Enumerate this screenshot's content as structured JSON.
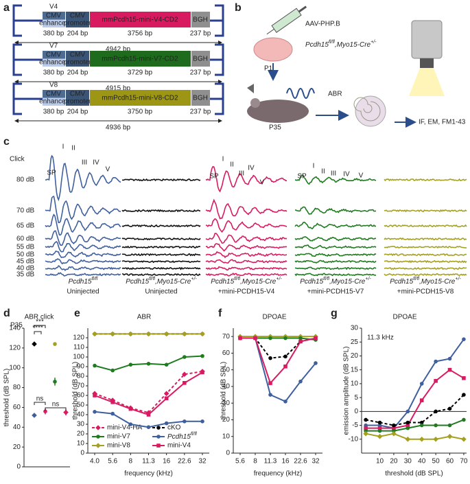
{
  "panel_labels": [
    "a",
    "b",
    "c",
    "d",
    "e",
    "f",
    "g"
  ],
  "constructs": [
    {
      "name": "V4",
      "enhancer": [
        "CMV",
        "enhancer"
      ],
      "promoter": [
        "CMV",
        "promoter"
      ],
      "gene": "mmPcdh15-mini-V4-CD2",
      "polyA": "BGH",
      "sizes": [
        "380 bp",
        "204 bp",
        "3756 bp",
        "237 bp"
      ],
      "total": "4942 bp",
      "color": "#d81b60"
    },
    {
      "name": "V7",
      "enhancer": [
        "CMV",
        "enhancer"
      ],
      "promoter": [
        "CMV",
        "promoter"
      ],
      "gene": "mmPcdh15-mini-V7-CD2",
      "polyA": "BGH",
      "sizes": [
        "380 bp",
        "204 bp",
        "3729 bp",
        "237 bp"
      ],
      "total": "4915 bp",
      "color": "#1e6b1e"
    },
    {
      "name": "V8",
      "enhancer": [
        "CMV",
        "enhancer"
      ],
      "promoter": [
        "CMV",
        "promoter"
      ],
      "gene": "mmPcdh15-mini-V8-CD2",
      "polyA": "BGH",
      "sizes": [
        "380 bp",
        "204 bp",
        "3750 bp",
        "237 bp"
      ],
      "total": "4936 bp",
      "color": "#9c9614"
    }
  ],
  "workflow": {
    "vector": "AAV-PHP.B",
    "genotype": [
      "Pcdh15",
      "fl/fl",
      ",Myo15-Cre",
      "+/-"
    ],
    "injection_age": "P1",
    "test": "ABR",
    "test_age": "P35",
    "analysis": "IF, EM, FM1-43"
  },
  "abr_traces": {
    "stimulus": "Click",
    "levels": [
      "80 dB",
      "70 dB",
      "65 dB",
      "60 dB",
      "55 dB",
      "50 dB",
      "45 dB",
      "40 dB",
      "35 dB"
    ],
    "peaks": [
      [
        "SP",
        "I",
        "II",
        "III",
        "IV",
        "V"
      ],
      [
        "SP",
        "I",
        "II",
        "III",
        "IV",
        "V"
      ],
      [
        "SP",
        "I",
        "II",
        "III",
        "IV",
        "V"
      ]
    ],
    "columns": [
      {
        "genotype": [
          "Pcdh15",
          "fl/fl"
        ],
        "treatment": "Uninjected",
        "color": "#3f5f9e"
      },
      {
        "genotype": [
          "Pcdh15",
          "fl/fl",
          ",Myo15-Cre",
          "+/-"
        ],
        "treatment": "Uninjected",
        "color": "#111111"
      },
      {
        "genotype": [
          "Pcdh15",
          "fl/fl",
          ",Myo15-Cre",
          "+/-"
        ],
        "treatment": "+mini-PCDH15-V4",
        "color": "#d81b60"
      },
      {
        "genotype": [
          "Pcdh15",
          "fl/fl",
          ",Myo15-Cre",
          "+/-"
        ],
        "treatment": "+mini-PCDH15-V7",
        "color": "#1e7b1e"
      },
      {
        "genotype": [
          "Pcdh15",
          "fl/fl",
          ",Myo15-Cre",
          "+/-"
        ],
        "treatment": "+mini-PCDH15-V8",
        "color": "#a5a01e"
      }
    ]
  },
  "chart_data": [
    {
      "type": "scatter",
      "title": "ABR click",
      "subtitle": "P35",
      "y_label": "threshold (dB SPL)",
      "ylim": [
        0,
        140
      ],
      "yticks": [
        0,
        20,
        40,
        60,
        80,
        100,
        120,
        140
      ],
      "series": [
        {
          "color": "#000000",
          "marker": "diamond",
          "values": [
            124
          ],
          "errors": [
            0
          ]
        },
        {
          "color": "#3f5f9e",
          "marker": "diamond",
          "values": [
            52
          ],
          "errors": [
            0
          ]
        },
        {
          "color": "#d81b60",
          "marker": "circle",
          "values": [
            56
          ],
          "errors": [
            3
          ]
        },
        {
          "color": "#1e7b1e",
          "marker": "circle",
          "values": [
            86
          ],
          "errors": [
            4
          ]
        },
        {
          "color": "#a5a01e",
          "marker": "circle",
          "values": [
            124
          ],
          "errors": [
            0
          ]
        },
        {
          "color": "#d81b60",
          "marker": "diamond",
          "values": [
            55
          ],
          "errors": [
            3
          ]
        }
      ],
      "annotations": [
        "***",
        "****",
        "ns",
        "ns"
      ]
    },
    {
      "type": "line",
      "title": "ABR",
      "x_label": "frequency (kHz)",
      "y_label": "threshold (dB SPL)",
      "categories": [
        "4.0",
        "5.6",
        "8",
        "11.3",
        "16",
        "22.6",
        "32"
      ],
      "ylim": [
        0,
        130
      ],
      "yticks": [
        0,
        10,
        20,
        30,
        40,
        50,
        60,
        70,
        80,
        90,
        100,
        110,
        120
      ],
      "series": [
        {
          "name": "mini-V4-HA",
          "color": "#d81b60",
          "dash": true,
          "marker": "diamond",
          "values": [
            62,
            55,
            47,
            42,
            62,
            82,
            85
          ]
        },
        {
          "name": "cKO",
          "color": "#000000",
          "dash": true,
          "marker": "circle",
          "values": [
            124,
            124,
            124,
            124,
            124,
            124,
            124
          ]
        },
        {
          "name": "mini-V7",
          "color": "#1e7b1e",
          "dash": false,
          "marker": "circle",
          "values": [
            91,
            86,
            92,
            93,
            92,
            100,
            101
          ]
        },
        {
          "name": [
            "Pcdh15",
            "fl/fl"
          ],
          "color": "#3f5f9e",
          "dash": false,
          "marker": "circle",
          "values": [
            43,
            41,
            30,
            27,
            31,
            33,
            33
          ]
        },
        {
          "name": "mini-V8",
          "color": "#a5a01e",
          "dash": false,
          "marker": "diamond",
          "values": [
            124,
            124,
            124,
            124,
            124,
            124,
            124
          ]
        },
        {
          "name": "mini-V4",
          "color": "#d81b60",
          "dash": false,
          "marker": "square",
          "values": [
            60,
            53,
            46,
            40,
            57,
            73,
            84
          ]
        }
      ]
    },
    {
      "type": "line",
      "title": "DPOAE",
      "x_label": "frequency (kHz)",
      "y_label": "threshold (dB SPL)",
      "categories": [
        "5.6",
        "8",
        "11.3",
        "16",
        "22.6",
        "32"
      ],
      "ylim": [
        0,
        75
      ],
      "yticks": [
        0,
        10,
        20,
        30,
        40,
        50,
        60,
        70
      ],
      "series": [
        {
          "color": "#a5a01e",
          "dash": false,
          "marker": "diamond",
          "values": [
            70,
            70,
            70,
            70,
            70,
            70
          ]
        },
        {
          "color": "#1e7b1e",
          "dash": false,
          "marker": "circle",
          "values": [
            69,
            69,
            69,
            69,
            69,
            68
          ]
        },
        {
          "color": "#000000",
          "dash": true,
          "marker": "circle",
          "values": [
            69,
            69,
            57,
            58,
            67,
            69
          ]
        },
        {
          "color": "#3f5f9e",
          "dash": false,
          "marker": "circle",
          "values": [
            69,
            69,
            35,
            31,
            43,
            54
          ]
        },
        {
          "color": "#d81b60",
          "dash": false,
          "marker": "square",
          "values": [
            69,
            69,
            42,
            52,
            67,
            69
          ]
        }
      ]
    },
    {
      "type": "line",
      "title": "DPOAE",
      "annotation": "11.3 kHz",
      "x_label": "threshold (dB SPL)",
      "y_label": "emission amplitude (dB SPL)",
      "x": [
        0,
        10,
        20,
        30,
        40,
        50,
        60,
        70
      ],
      "xlim": [
        -3,
        72
      ],
      "xticks": [
        10,
        20,
        30,
        40,
        50,
        60,
        70
      ],
      "ylim": [
        -15,
        30
      ],
      "yticks": [
        -10,
        -5,
        0,
        5,
        10,
        15,
        20,
        25,
        30
      ],
      "series": [
        {
          "color": "#3f5f9e",
          "dash": false,
          "marker": "circle",
          "values": [
            -5,
            -5,
            -6,
            0,
            10,
            18,
            19,
            26
          ]
        },
        {
          "color": "#d81b60",
          "dash": false,
          "marker": "square",
          "values": [
            -6,
            -6,
            -6,
            -5,
            4,
            11,
            15,
            12
          ]
        },
        {
          "color": "#000000",
          "dash": true,
          "marker": "circle",
          "values": [
            -3,
            -4,
            -5,
            -4,
            -4,
            0,
            1,
            6
          ]
        },
        {
          "color": "#1e7b1e",
          "dash": false,
          "marker": "circle",
          "values": [
            -7,
            -7,
            -7,
            -6,
            -5,
            -5,
            -5,
            -3
          ]
        },
        {
          "color": "#a5a01e",
          "dash": false,
          "marker": "diamond",
          "values": [
            -8,
            -9,
            -8,
            -10,
            -10,
            -10,
            -9,
            -10
          ]
        }
      ]
    }
  ]
}
